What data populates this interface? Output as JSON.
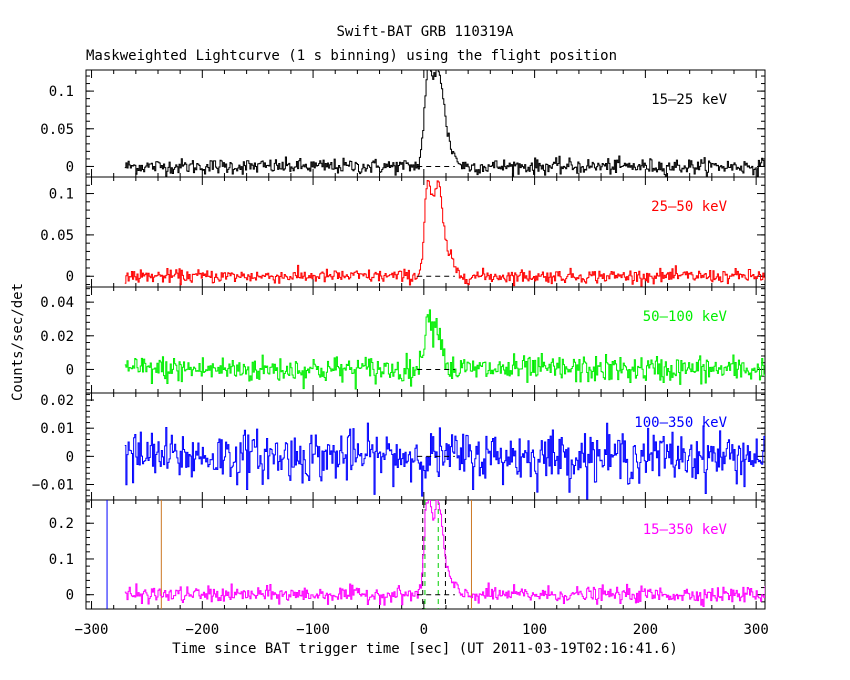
{
  "title": "Swift-BAT GRB 110319A",
  "subtitle": "Maskweighted Lightcurve (1 s binning) using the flight position",
  "xlabel": "Time since BAT trigger time [sec] (UT 2011-03-19T02:16:41.6)",
  "ylabel": "Counts/sec/det",
  "chart_data": {
    "type": "line",
    "title": "Swift-BAT GRB 110319A",
    "subtitle": "Maskweighted Lightcurve (1 s binning) using the flight position",
    "xlabel": "Time since BAT trigger time [sec] (UT 2011-03-19T02:16:41.6)",
    "ylabel": "Counts/sec/det",
    "xlim": [
      -305,
      308
    ],
    "xticks": [
      -300,
      -200,
      -100,
      0,
      100,
      200,
      300
    ],
    "xtick_labels": [
      "−300",
      "−200",
      "−100",
      "0",
      "100",
      "200",
      "300"
    ],
    "data_range": [
      -270,
      308
    ],
    "panels": [
      {
        "band": "15–25 keV",
        "color": "#000000",
        "ylim": [
          -0.014,
          0.128
        ],
        "yticks": [
          0,
          0.05,
          0.1
        ],
        "ytick_labels": [
          "0",
          "0.05",
          "0.1"
        ],
        "noise_sigma": 0.005,
        "peaks": [
          {
            "t": 3,
            "amp": 0.112,
            "width": 3.2
          },
          {
            "t": 12,
            "amp": 0.118,
            "width": 4.5
          },
          {
            "t": 20,
            "amp": 0.03,
            "width": 6
          }
        ]
      },
      {
        "band": "25–50 keV",
        "color": "#ff0000",
        "ylim": [
          -0.013,
          0.12
        ],
        "yticks": [
          0,
          0.05,
          0.1
        ],
        "ytick_labels": [
          "0",
          "0.05",
          "0.1"
        ],
        "noise_sigma": 0.004,
        "peaks": [
          {
            "t": 3,
            "amp": 0.108,
            "width": 3.0
          },
          {
            "t": 12,
            "amp": 0.106,
            "width": 4.0
          },
          {
            "t": 21,
            "amp": 0.025,
            "width": 5
          }
        ]
      },
      {
        "band": "50–100 keV",
        "color": "#00ee00",
        "ylim": [
          -0.014,
          0.049
        ],
        "yticks": [
          0,
          0.02,
          0.04
        ],
        "ytick_labels": [
          "0",
          "0.02",
          "0.04"
        ],
        "noise_sigma": 0.004,
        "peaks": [
          {
            "t": 3,
            "amp": 0.032,
            "width": 3.0
          },
          {
            "t": 12,
            "amp": 0.026,
            "width": 4.0
          }
        ]
      },
      {
        "band": "100–350 keV",
        "color": "#0000ff",
        "ylim": [
          -0.0155,
          0.0225
        ],
        "yticks": [
          -0.01,
          0,
          0.01,
          0.02
        ],
        "ytick_labels": [
          "−0.01",
          "0",
          "0.01",
          "0.02"
        ],
        "noise_sigma": 0.0045,
        "peaks": []
      },
      {
        "band": "15–350 keV",
        "color": "#ff00ff",
        "ylim": [
          -0.04,
          0.265
        ],
        "yticks": [
          0,
          0.1,
          0.2
        ],
        "ytick_labels": [
          "0",
          "0.1",
          "0.2"
        ],
        "noise_sigma": 0.011,
        "peaks": [
          {
            "t": 3,
            "amp": 0.245,
            "width": 3.0
          },
          {
            "t": 12,
            "amp": 0.25,
            "width": 4.2
          },
          {
            "t": 21,
            "amp": 0.045,
            "width": 5
          }
        ]
      }
    ],
    "markers": [
      {
        "t": -286,
        "color": "#0000ff",
        "style": "solid"
      },
      {
        "t": -237,
        "color": "#cc7722",
        "style": "solid"
      },
      {
        "t": 43,
        "color": "#cc7722",
        "style": "solid"
      },
      {
        "t": -1,
        "color": "#000000",
        "style": "dashed"
      },
      {
        "t": 19.5,
        "color": "#000000",
        "style": "dashed"
      },
      {
        "t": 1,
        "color": "#00cc00",
        "style": "dashed"
      },
      {
        "t": 13,
        "color": "#00cc00",
        "style": "dashed"
      }
    ]
  }
}
